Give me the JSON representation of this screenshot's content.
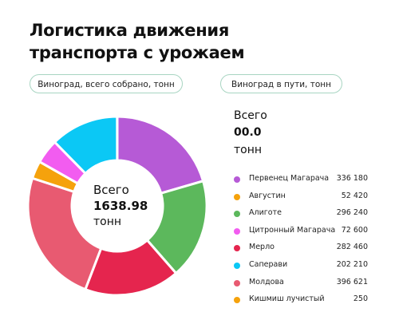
{
  "chart_data": {
    "type": "donut",
    "title": "Логистика движения транспорта с урожаем",
    "tabs": [
      "Виноград, всего собрано, тонн",
      "Виноград в пути, тонн"
    ],
    "center_label": {
      "caption": "Всего",
      "value": "1638.98",
      "unit": "тонн"
    },
    "side_total": {
      "caption": "Всего",
      "value": "00.0",
      "unit": "тонн"
    },
    "categories": [
      "Первенец Магарача",
      "Августин",
      "Алиготе",
      "Цитронный Магарача",
      "Мерло",
      "Саперави",
      "Молдова",
      "Кишмиш лучистый"
    ],
    "values": [
      336180,
      52420,
      296240,
      72600,
      282460,
      202210,
      396621,
      250
    ],
    "value_labels": [
      "336 180",
      "52 420",
      "296 240",
      "72 600",
      "282 460",
      "202 210",
      "396 621",
      "250"
    ],
    "colors": [
      "#b65ad6",
      "#f5a20c",
      "#5cb85c",
      "#f25cf0",
      "#e5254e",
      "#0bc8f5",
      "#e85a71",
      "#f5a20c"
    ],
    "segment_order": [
      0,
      2,
      4,
      6,
      1,
      3,
      5,
      7
    ]
  }
}
